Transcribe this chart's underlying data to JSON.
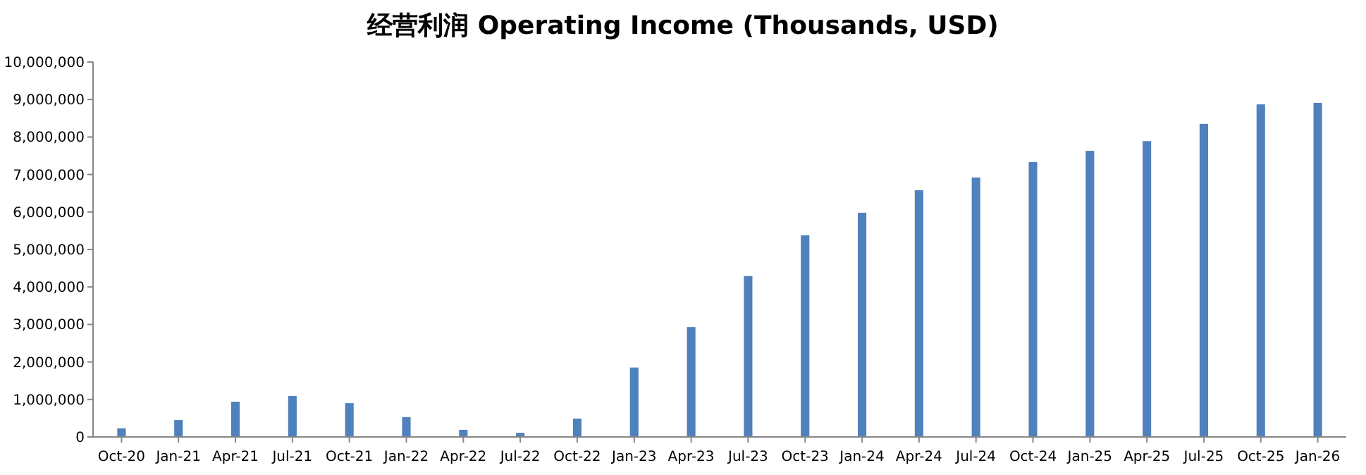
{
  "chart_data": {
    "type": "bar",
    "title": "经营利润 Operating Income (Thousands, USD)",
    "categories": [
      "Oct-20",
      "Jan-21",
      "Apr-21",
      "Jul-21",
      "Oct-21",
      "Jan-22",
      "Apr-22",
      "Jul-22",
      "Oct-22",
      "Jan-23",
      "Apr-23",
      "Jul-23",
      "Oct-23",
      "Jan-24",
      "Apr-24",
      "Jul-24",
      "Oct-24",
      "Jan-25",
      "Apr-25",
      "Jul-25",
      "Oct-25",
      "Jan-26"
    ],
    "values": [
      230000,
      450000,
      940000,
      1090000,
      900000,
      530000,
      190000,
      110000,
      490000,
      1850000,
      2930000,
      4290000,
      5380000,
      5980000,
      6580000,
      6920000,
      7330000,
      7630000,
      7890000,
      8350000,
      8870000,
      8910000
    ],
    "color": "#4f81bd",
    "ylim": [
      0,
      10000000
    ],
    "yticks": [
      {
        "value": 0,
        "label": "0"
      },
      {
        "value": 1000000,
        "label": "1,000,000"
      },
      {
        "value": 2000000,
        "label": "2,000,000"
      },
      {
        "value": 3000000,
        "label": "3,000,000"
      },
      {
        "value": 4000000,
        "label": "4,000,000"
      },
      {
        "value": 5000000,
        "label": "5,000,000"
      },
      {
        "value": 6000000,
        "label": "6,000,000"
      },
      {
        "value": 7000000,
        "label": "7,000,000"
      },
      {
        "value": 8000000,
        "label": "8,000,000"
      },
      {
        "value": 9000000,
        "label": "9,000,000"
      },
      {
        "value": 10000000,
        "label": "10,000,000"
      }
    ],
    "grid": false
  }
}
